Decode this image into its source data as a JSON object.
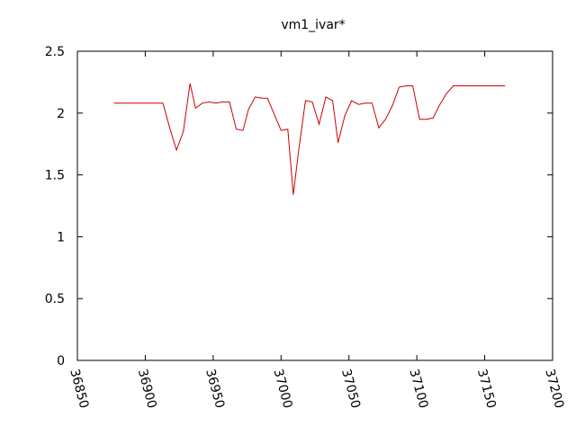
{
  "chart_data": {
    "type": "line",
    "title": "vm1_ivar*",
    "xlabel": "",
    "ylabel": "",
    "xlim": [
      36850,
      37200
    ],
    "ylim": [
      0,
      2.5
    ],
    "x_ticks": [
      36850,
      36900,
      36950,
      37000,
      37050,
      37100,
      37150,
      37200
    ],
    "y_ticks": [
      0,
      0.5,
      1,
      1.5,
      2,
      2.5
    ],
    "y_tick_labels": [
      "0",
      "0.5",
      "1",
      "1.5",
      "2",
      "2.5"
    ],
    "grid": false,
    "legend": "none",
    "colors": {
      "line": "#cc0000",
      "axis": "#000000",
      "background": "#ffffff"
    },
    "series": [
      {
        "x": [
          36877,
          36913,
          36918,
          36923,
          36928,
          36933,
          36937,
          36942,
          36947,
          36952,
          36957,
          36962,
          36967,
          36972,
          36976,
          36981,
          36986,
          36990,
          36995,
          37000,
          37005,
          37009,
          37013,
          37018,
          37023,
          37028,
          37033,
          37038,
          37042,
          37047,
          37052,
          37057,
          37062,
          37067,
          37072,
          37077,
          37082,
          37087,
          37092,
          37097,
          37102,
          37107,
          37112,
          37117,
          37122,
          37127,
          37132,
          37137,
          37142,
          37147,
          37165
        ],
        "y": [
          2.08,
          2.08,
          1.88,
          1.7,
          1.85,
          2.24,
          2.04,
          2.08,
          2.09,
          2.08,
          2.09,
          2.09,
          1.87,
          1.86,
          2.03,
          2.13,
          2.12,
          2.12,
          1.99,
          1.86,
          1.87,
          1.34,
          1.7,
          2.1,
          2.09,
          1.91,
          2.13,
          2.1,
          1.76,
          1.98,
          2.1,
          2.07,
          2.08,
          2.08,
          1.88,
          1.95,
          2.06,
          2.21,
          2.22,
          2.22,
          1.95,
          1.95,
          1.96,
          2.07,
          2.16,
          2.22,
          2.22,
          2.22,
          2.22,
          2.22,
          2.22
        ]
      }
    ]
  }
}
